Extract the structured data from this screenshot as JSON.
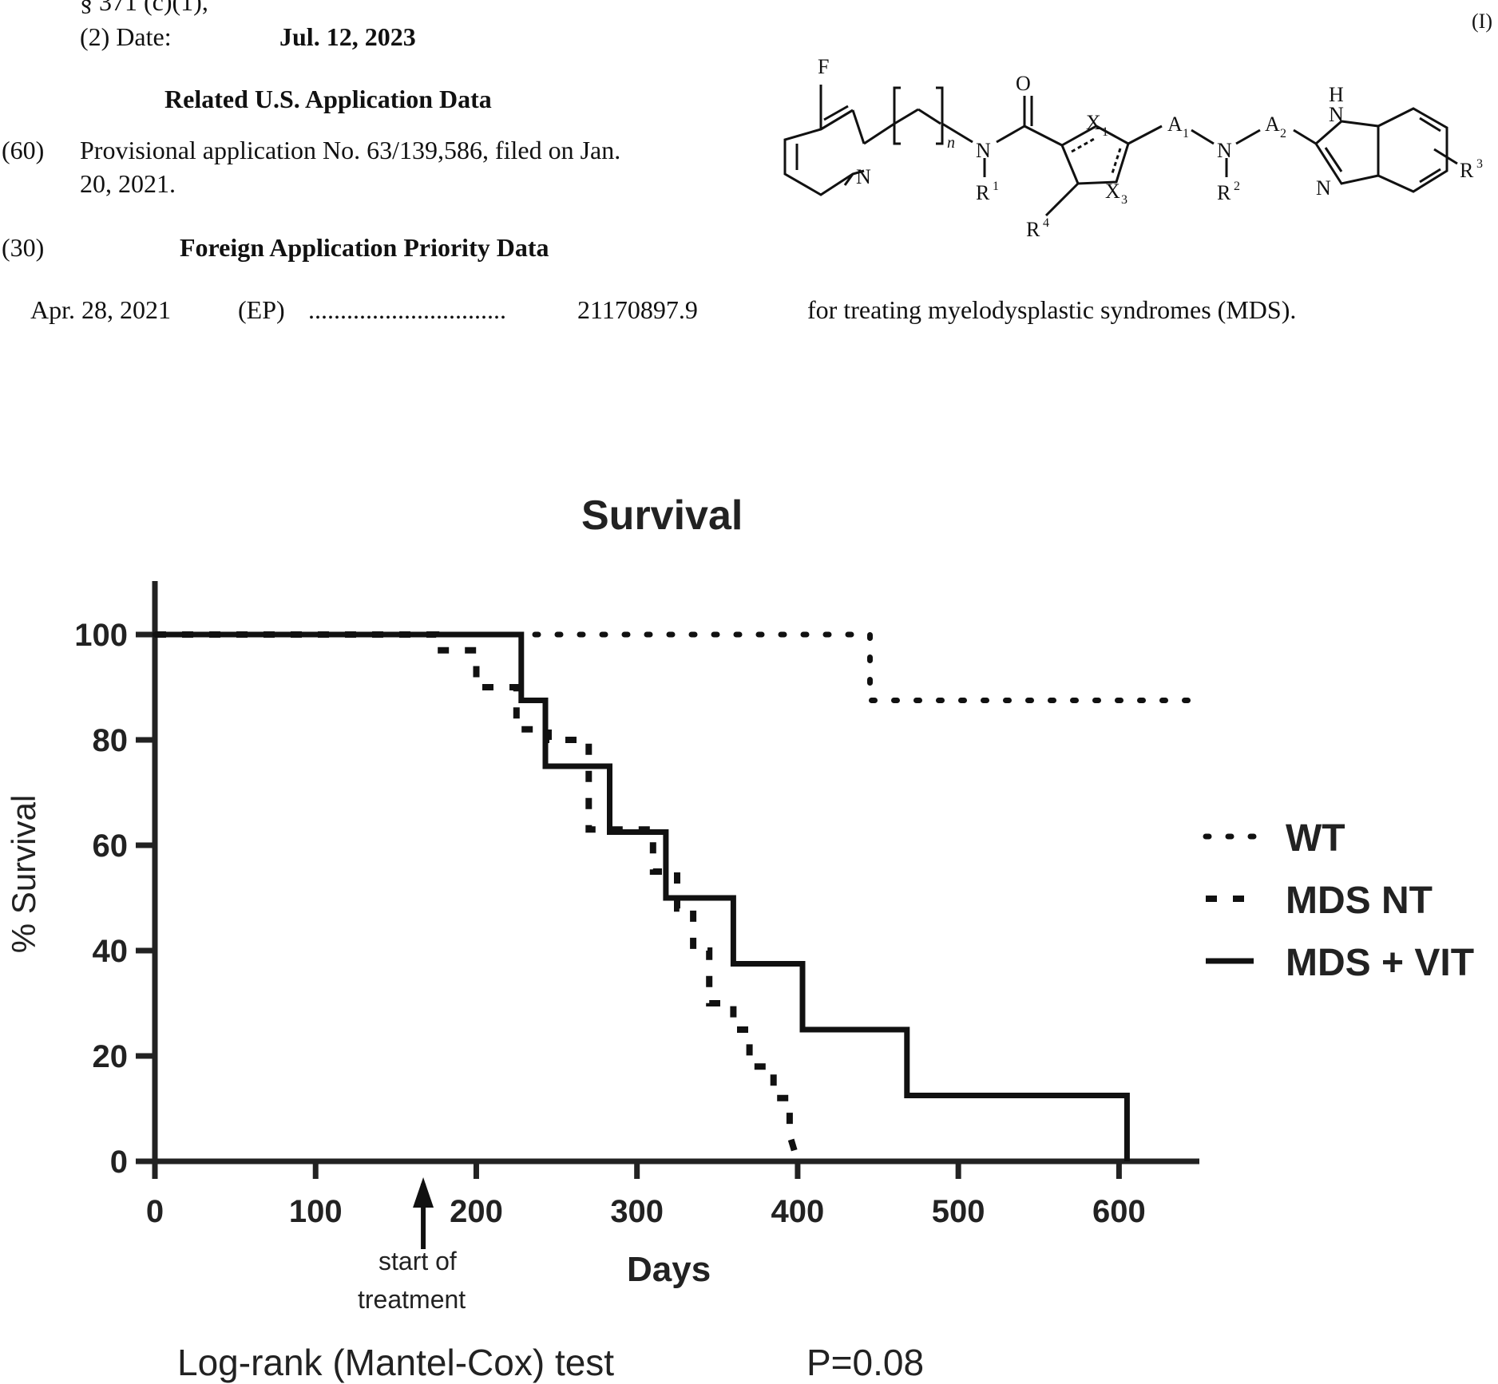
{
  "header": {
    "pct_line": "§ 371 (c)(1),",
    "date_label": "(2) Date:",
    "date_value": "Jul. 12, 2023",
    "related_heading": "Related U.S. Application Data",
    "prov_code": "(60)",
    "prov_line1": "Provisional application No. 63/139,586, filed on Jan.",
    "prov_line2": "20, 2021.",
    "foreign_code": "(30)",
    "foreign_heading": "Foreign Application Priority Data",
    "foreign_date": "Apr. 28, 2021",
    "foreign_country": "(EP)",
    "foreign_dots": "...............................",
    "foreign_number": "21170897.9",
    "formula_label": "(I)",
    "formula_caption": "for treating myelodysplastic syndromes (MDS)."
  },
  "structure": {
    "F": "F",
    "O": "O",
    "N_pyr": "N",
    "n": "n",
    "N_amide": "N",
    "R1": "R",
    "R1_sup": "1",
    "X1": "X",
    "X1_sub": "1",
    "X3": "X",
    "X3_sub": "3",
    "R4": "R",
    "R4_sup": "4",
    "A1": "A",
    "A1_sub": "1",
    "N_mid": "N",
    "R2": "R",
    "R2_sup": "2",
    "A2": "A",
    "A2_sub": "2",
    "H": "H",
    "N_top": "N",
    "N_bot": "N",
    "R3": "R",
    "R3_sup": "3"
  },
  "chart_data": {
    "type": "line",
    "title": "Survival",
    "xlabel": "Days",
    "ylabel": "% Survival",
    "xlim": [
      0,
      650
    ],
    "ylim": [
      0,
      100
    ],
    "xticks": [
      "0",
      "100",
      "200",
      "300",
      "400",
      "500",
      "600"
    ],
    "yticks": [
      "0",
      "20",
      "40",
      "60",
      "80",
      "100"
    ],
    "legend_position": "right",
    "annotation": {
      "text_line1": "start of",
      "text_line2": "treatment",
      "x": 167
    },
    "test_text": "Log-rank (Mantel-Cox) test",
    "p_value": "P=0.08",
    "series": [
      {
        "name": "WT",
        "style": "dotted",
        "x": [
          0,
          445,
          445,
          650
        ],
        "y": [
          100,
          100,
          87.5,
          87.5
        ]
      },
      {
        "name": "MDS NT",
        "style": "dashed",
        "x": [
          0,
          175,
          175,
          200,
          200,
          225,
          225,
          245,
          245,
          270,
          270,
          310,
          310,
          325,
          325,
          335,
          335,
          345,
          345,
          360,
          360,
          370,
          370,
          385,
          385,
          395,
          395,
          400
        ],
        "y": [
          100,
          100,
          97,
          97,
          90,
          90,
          82,
          82,
          80,
          80,
          63,
          63,
          55,
          55,
          48,
          48,
          40,
          40,
          30,
          30,
          25,
          25,
          18,
          18,
          12,
          12,
          5,
          0
        ]
      },
      {
        "name": "MDS + VIT",
        "style": "solid",
        "x": [
          0,
          228,
          228,
          243,
          243,
          283,
          283,
          318,
          318,
          360,
          360,
          403,
          403,
          468,
          468,
          605,
          605
        ],
        "y": [
          100,
          100,
          87.5,
          87.5,
          75,
          75,
          62.5,
          62.5,
          50,
          50,
          37.5,
          37.5,
          25,
          25,
          12.5,
          12.5,
          0
        ]
      }
    ]
  }
}
